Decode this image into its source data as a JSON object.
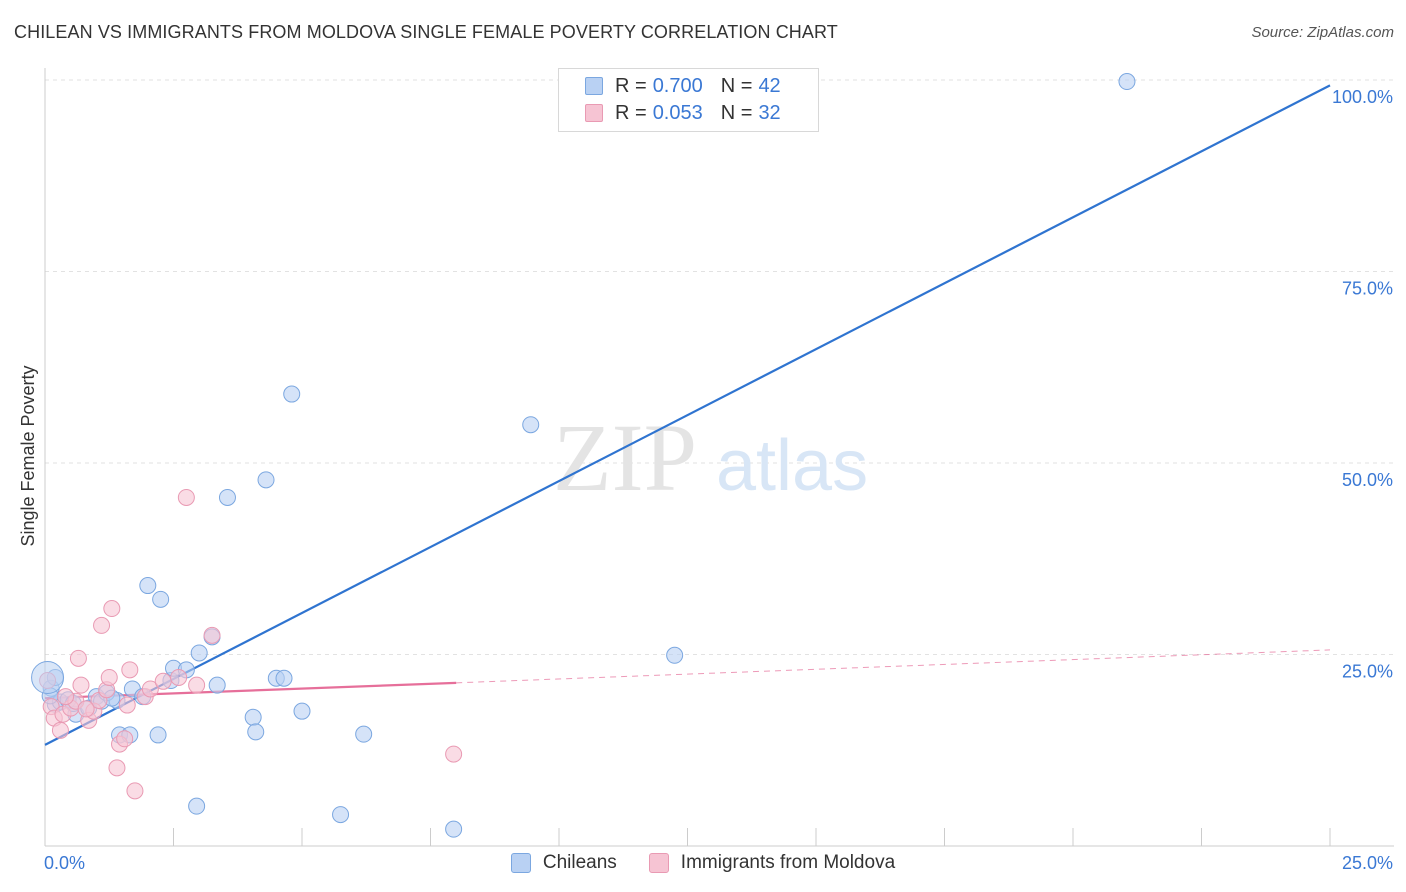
{
  "title": "CHILEAN VS IMMIGRANTS FROM MOLDOVA SINGLE FEMALE POVERTY CORRELATION CHART",
  "source": "Source: ZipAtlas.com",
  "watermark": {
    "zip": "ZIP",
    "atlas": "atlas"
  },
  "legend": {
    "rows": [
      {
        "r_label": "R =",
        "r_value": "0.700",
        "n_label": "N =",
        "n_value": "42"
      },
      {
        "r_label": "R =",
        "r_value": "0.053",
        "n_label": "N =",
        "n_value": "32"
      }
    ]
  },
  "bottom_legend": {
    "series1": "Chileans",
    "series2": "Immigrants from Moldova"
  },
  "colors": {
    "blue_fill": "#b9d1f3",
    "blue_stroke": "#7ba7e0",
    "blue_line": "#2f74d0",
    "pink_fill": "#f6c4d3",
    "pink_stroke": "#e99ab3",
    "pink_line": "#e66f9a",
    "tick_label": "#3a78d4",
    "grid": "#e2e2e2"
  },
  "chart_data": {
    "type": "scatter",
    "title": "CHILEAN VS IMMIGRANTS FROM MOLDOVA SINGLE FEMALE POVERTY CORRELATION CHART",
    "xlabel": "",
    "ylabel": "Single Female Poverty",
    "xlim": [
      0,
      25
    ],
    "ylim": [
      0,
      100
    ],
    "x_tick_labels": [
      "0.0%",
      "25.0%"
    ],
    "y_ticks": [
      25,
      50,
      75,
      100
    ],
    "y_tick_labels": [
      "25.0%",
      "50.0%",
      "75.0%",
      "100.0%"
    ],
    "grid": true,
    "legend_position": "top-center",
    "series": [
      {
        "name": "Chileans",
        "points": [
          [
            0.12,
            20.6
          ],
          [
            0.2,
            18.5
          ],
          [
            0.3,
            18.8
          ],
          [
            0.45,
            19.1
          ],
          [
            0.6,
            17.2
          ],
          [
            0.85,
            18.0
          ],
          [
            1.0,
            19.5
          ],
          [
            1.1,
            18.9
          ],
          [
            1.4,
            19.0
          ],
          [
            1.7,
            20.5
          ],
          [
            1.9,
            19.5
          ],
          [
            1.45,
            14.5
          ],
          [
            1.65,
            14.5
          ],
          [
            2.2,
            14.5
          ],
          [
            2.0,
            34.0
          ],
          [
            2.25,
            32.2
          ],
          [
            2.45,
            21.6
          ],
          [
            2.5,
            23.2
          ],
          [
            2.75,
            23.0
          ],
          [
            3.0,
            25.2
          ],
          [
            3.25,
            27.3
          ],
          [
            3.35,
            21.0
          ],
          [
            3.55,
            45.5
          ],
          [
            4.05,
            16.8
          ],
          [
            4.1,
            14.9
          ],
          [
            4.3,
            47.8
          ],
          [
            4.5,
            21.9
          ],
          [
            4.65,
            21.9
          ],
          [
            4.8,
            59.0
          ],
          [
            5.0,
            17.6
          ],
          [
            5.75,
            4.1
          ],
          [
            6.2,
            14.6
          ],
          [
            7.95,
            2.2
          ],
          [
            9.45,
            55.0
          ],
          [
            12.25,
            24.9
          ],
          [
            21.05,
            99.8
          ],
          [
            2.95,
            5.2
          ],
          [
            0.2,
            22.0
          ],
          [
            0.1,
            19.6
          ],
          [
            1.2,
            20.0
          ],
          [
            0.55,
            18.6
          ],
          [
            1.3,
            19.3
          ]
        ]
      },
      {
        "name": "Immigrants from Moldova",
        "points": [
          [
            0.05,
            21.6
          ],
          [
            0.12,
            18.2
          ],
          [
            0.18,
            16.7
          ],
          [
            0.3,
            15.1
          ],
          [
            0.35,
            17.2
          ],
          [
            0.5,
            18.0
          ],
          [
            0.6,
            18.9
          ],
          [
            0.7,
            21.0
          ],
          [
            0.65,
            24.5
          ],
          [
            0.85,
            16.4
          ],
          [
            0.95,
            17.6
          ],
          [
            1.05,
            19.0
          ],
          [
            1.1,
            28.8
          ],
          [
            1.2,
            20.4
          ],
          [
            1.25,
            22.0
          ],
          [
            1.3,
            31.0
          ],
          [
            1.4,
            10.2
          ],
          [
            1.45,
            13.3
          ],
          [
            1.55,
            14.0
          ],
          [
            1.6,
            18.4
          ],
          [
            1.65,
            23.0
          ],
          [
            1.75,
            7.2
          ],
          [
            1.95,
            19.5
          ],
          [
            2.05,
            20.5
          ],
          [
            2.3,
            21.5
          ],
          [
            2.6,
            22.0
          ],
          [
            2.75,
            45.5
          ],
          [
            2.95,
            21.0
          ],
          [
            3.25,
            27.5
          ],
          [
            7.95,
            12.0
          ],
          [
            0.4,
            19.5
          ],
          [
            0.8,
            17.9
          ]
        ]
      }
    ],
    "trendlines": [
      {
        "series": "Chileans",
        "x": [
          0,
          25
        ],
        "y": [
          13.2,
          99.3
        ],
        "style": "solid"
      },
      {
        "series": "Immigrants from Moldova",
        "x": [
          0,
          8
        ],
        "y": [
          19.3,
          21.3
        ],
        "style": "solid"
      },
      {
        "series": "Immigrants from Moldova",
        "x": [
          8,
          25
        ],
        "y": [
          21.3,
          25.6
        ],
        "style": "dashed"
      }
    ]
  }
}
